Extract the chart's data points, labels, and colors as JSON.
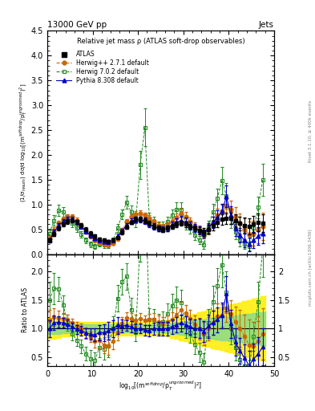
{
  "title_top": "13000 GeV pp",
  "title_top_right": "Jets",
  "plot_title": "Relative jet mass ρ (ATLAS soft-drop observables)",
  "ylabel_main": "(1/σ$_{resum}$) dσ/d log$_{10}$[(m$^{soft drop}$/p$_T^{ungroomed}$)$^2$]",
  "ylabel_ratio": "Ratio to ATLAS",
  "xlabel": "log$_{10}$[(m$^{soft drop}$/p$_T^{ungroomed}$)$^2$]",
  "right_label1": "Rivet 3.1.10, ≥ 400k events",
  "right_label2": "mcplots.cern.ch [arXiv:1306.3436]",
  "xmin": 0,
  "xmax": 50,
  "ymin_main": 0.0,
  "ymax_main": 4.5,
  "ymin_ratio": 0.35,
  "ymax_ratio": 2.3,
  "atlas_color": "#000000",
  "herwigpp_color": "#cc6600",
  "herwig702_color": "#228b22",
  "pythia_color": "#0000cc",
  "xticks": [
    0,
    10,
    20,
    30,
    40,
    50
  ],
  "yticks_main": [
    0.0,
    0.5,
    1.0,
    1.5,
    2.0,
    2.5,
    3.0,
    3.5,
    4.0,
    4.5
  ],
  "yticks_ratio": [
    0.5,
    1.0,
    1.5,
    2.0
  ],
  "x": [
    0.5,
    1.5,
    2.5,
    3.5,
    4.5,
    5.5,
    6.5,
    7.5,
    8.5,
    9.5,
    10.5,
    11.5,
    12.5,
    13.5,
    14.5,
    15.5,
    16.5,
    17.5,
    18.5,
    19.5,
    20.5,
    21.5,
    22.5,
    23.5,
    24.5,
    25.5,
    26.5,
    27.5,
    28.5,
    29.5,
    30.5,
    31.5,
    32.5,
    33.5,
    34.5,
    35.5,
    36.5,
    37.5,
    38.5,
    39.5,
    40.5,
    41.5,
    42.5,
    43.5,
    44.5,
    45.5,
    46.5,
    47.5
  ],
  "atlas_y": [
    0.28,
    0.4,
    0.52,
    0.6,
    0.65,
    0.68,
    0.65,
    0.58,
    0.5,
    0.42,
    0.36,
    0.3,
    0.28,
    0.26,
    0.28,
    0.34,
    0.44,
    0.55,
    0.64,
    0.7,
    0.7,
    0.68,
    0.62,
    0.56,
    0.52,
    0.5,
    0.52,
    0.56,
    0.6,
    0.62,
    0.6,
    0.56,
    0.52,
    0.48,
    0.44,
    0.5,
    0.58,
    0.64,
    0.7,
    0.72,
    0.72,
    0.68,
    0.62,
    0.58,
    0.56,
    0.6,
    0.64,
    0.62
  ],
  "atlas_yerr": [
    0.04,
    0.04,
    0.04,
    0.04,
    0.04,
    0.04,
    0.04,
    0.04,
    0.04,
    0.04,
    0.04,
    0.03,
    0.03,
    0.03,
    0.03,
    0.03,
    0.04,
    0.04,
    0.04,
    0.05,
    0.05,
    0.05,
    0.05,
    0.05,
    0.05,
    0.05,
    0.05,
    0.05,
    0.05,
    0.05,
    0.05,
    0.05,
    0.06,
    0.07,
    0.08,
    0.09,
    0.1,
    0.1,
    0.11,
    0.12,
    0.12,
    0.13,
    0.14,
    0.15,
    0.16,
    0.17,
    0.18,
    0.18
  ],
  "herwigpp_y": [
    0.32,
    0.48,
    0.62,
    0.7,
    0.75,
    0.75,
    0.68,
    0.58,
    0.46,
    0.36,
    0.28,
    0.24,
    0.2,
    0.18,
    0.22,
    0.32,
    0.48,
    0.65,
    0.75,
    0.8,
    0.82,
    0.78,
    0.72,
    0.65,
    0.58,
    0.54,
    0.58,
    0.65,
    0.74,
    0.82,
    0.76,
    0.66,
    0.56,
    0.48,
    0.4,
    0.5,
    0.64,
    0.78,
    0.86,
    0.98,
    0.9,
    0.76,
    0.62,
    0.5,
    0.4,
    0.42,
    0.5,
    0.56
  ],
  "herwigpp_yerr": [
    0.05,
    0.06,
    0.06,
    0.06,
    0.06,
    0.05,
    0.05,
    0.05,
    0.05,
    0.04,
    0.04,
    0.04,
    0.04,
    0.04,
    0.04,
    0.05,
    0.05,
    0.06,
    0.06,
    0.07,
    0.07,
    0.06,
    0.06,
    0.06,
    0.06,
    0.06,
    0.06,
    0.07,
    0.08,
    0.09,
    0.09,
    0.08,
    0.08,
    0.09,
    0.09,
    0.1,
    0.12,
    0.14,
    0.14,
    0.18,
    0.18,
    0.18,
    0.2,
    0.22,
    0.25,
    0.25,
    0.28,
    0.28
  ],
  "herwig702_y": [
    0.42,
    0.68,
    0.88,
    0.85,
    0.72,
    0.62,
    0.52,
    0.4,
    0.28,
    0.2,
    0.16,
    0.2,
    0.18,
    0.18,
    0.28,
    0.52,
    0.8,
    1.05,
    0.85,
    0.65,
    1.8,
    2.55,
    0.72,
    0.65,
    0.56,
    0.56,
    0.65,
    0.78,
    0.9,
    0.9,
    0.62,
    0.52,
    0.38,
    0.28,
    0.18,
    0.55,
    0.85,
    1.12,
    1.48,
    1.18,
    0.72,
    0.45,
    0.28,
    0.2,
    0.16,
    0.52,
    0.94,
    1.5
  ],
  "herwig702_yerr": [
    0.09,
    0.11,
    0.11,
    0.1,
    0.09,
    0.08,
    0.07,
    0.07,
    0.06,
    0.06,
    0.05,
    0.05,
    0.05,
    0.05,
    0.06,
    0.08,
    0.1,
    0.13,
    0.13,
    0.1,
    0.28,
    0.38,
    0.12,
    0.1,
    0.09,
    0.09,
    0.1,
    0.12,
    0.14,
    0.14,
    0.12,
    0.1,
    0.09,
    0.08,
    0.07,
    0.12,
    0.16,
    0.2,
    0.28,
    0.26,
    0.2,
    0.15,
    0.12,
    0.1,
    0.09,
    0.15,
    0.22,
    0.32
  ],
  "pythia_y": [
    0.28,
    0.44,
    0.58,
    0.66,
    0.7,
    0.7,
    0.64,
    0.56,
    0.46,
    0.38,
    0.32,
    0.28,
    0.26,
    0.25,
    0.28,
    0.36,
    0.46,
    0.58,
    0.66,
    0.7,
    0.7,
    0.66,
    0.6,
    0.56,
    0.52,
    0.5,
    0.52,
    0.58,
    0.64,
    0.68,
    0.64,
    0.58,
    0.52,
    0.48,
    0.42,
    0.52,
    0.64,
    0.74,
    0.86,
    1.16,
    0.78,
    0.52,
    0.38,
    0.28,
    0.2,
    0.28,
    0.36,
    0.42
  ],
  "pythia_yerr": [
    0.04,
    0.05,
    0.05,
    0.05,
    0.05,
    0.05,
    0.05,
    0.05,
    0.04,
    0.04,
    0.04,
    0.04,
    0.04,
    0.04,
    0.04,
    0.05,
    0.05,
    0.05,
    0.06,
    0.06,
    0.06,
    0.06,
    0.06,
    0.06,
    0.06,
    0.06,
    0.06,
    0.07,
    0.08,
    0.09,
    0.09,
    0.08,
    0.08,
    0.08,
    0.08,
    0.1,
    0.12,
    0.14,
    0.16,
    0.22,
    0.18,
    0.16,
    0.14,
    0.14,
    0.14,
    0.16,
    0.18,
    0.2
  ],
  "yellow_band_x": [
    0,
    1,
    2,
    3,
    4,
    5,
    6,
    7,
    8,
    9,
    10,
    11,
    12,
    13,
    14,
    15,
    16,
    17,
    18,
    19,
    20,
    21,
    22,
    23,
    24,
    25,
    26,
    27,
    28,
    29,
    30,
    31,
    32,
    33,
    34,
    35,
    36,
    37,
    38,
    39,
    40,
    41,
    42,
    43,
    44,
    45,
    46,
    47,
    48
  ],
  "yellow_band_lo": [
    0.82,
    0.82,
    0.84,
    0.86,
    0.87,
    0.88,
    0.88,
    0.88,
    0.88,
    0.88,
    0.88,
    0.88,
    0.88,
    0.88,
    0.88,
    0.88,
    0.88,
    0.88,
    0.88,
    0.88,
    0.88,
    0.88,
    0.88,
    0.88,
    0.88,
    0.88,
    0.86,
    0.84,
    0.82,
    0.8,
    0.78,
    0.76,
    0.74,
    0.72,
    0.7,
    0.68,
    0.66,
    0.64,
    0.62,
    0.6,
    0.58,
    0.56,
    0.54,
    0.52,
    0.5,
    0.48,
    0.46,
    0.44,
    0.42
  ],
  "yellow_band_hi": [
    1.18,
    1.18,
    1.16,
    1.14,
    1.13,
    1.12,
    1.12,
    1.12,
    1.12,
    1.12,
    1.12,
    1.12,
    1.12,
    1.12,
    1.12,
    1.12,
    1.12,
    1.12,
    1.12,
    1.12,
    1.12,
    1.12,
    1.12,
    1.12,
    1.12,
    1.12,
    1.14,
    1.16,
    1.18,
    1.2,
    1.22,
    1.24,
    1.26,
    1.28,
    1.3,
    1.32,
    1.34,
    1.36,
    1.38,
    1.4,
    1.42,
    1.44,
    1.46,
    1.48,
    1.5,
    1.52,
    1.54,
    1.56,
    1.58
  ],
  "green_band_lo": [
    0.9,
    0.9,
    0.91,
    0.92,
    0.92,
    0.93,
    0.93,
    0.93,
    0.93,
    0.93,
    0.93,
    0.93,
    0.93,
    0.93,
    0.93,
    0.93,
    0.93,
    0.93,
    0.93,
    0.93,
    0.93,
    0.93,
    0.93,
    0.93,
    0.93,
    0.93,
    0.92,
    0.91,
    0.9,
    0.89,
    0.88,
    0.87,
    0.86,
    0.85,
    0.84,
    0.83,
    0.82,
    0.81,
    0.8,
    0.79,
    0.78,
    0.77,
    0.76,
    0.75,
    0.74,
    0.73,
    0.72,
    0.71,
    0.7
  ],
  "green_band_hi": [
    1.1,
    1.1,
    1.09,
    1.08,
    1.08,
    1.07,
    1.07,
    1.07,
    1.07,
    1.07,
    1.07,
    1.07,
    1.07,
    1.07,
    1.07,
    1.07,
    1.07,
    1.07,
    1.07,
    1.07,
    1.07,
    1.07,
    1.07,
    1.07,
    1.07,
    1.07,
    1.08,
    1.09,
    1.1,
    1.11,
    1.12,
    1.13,
    1.14,
    1.15,
    1.16,
    1.17,
    1.18,
    1.19,
    1.2,
    1.21,
    1.22,
    1.23,
    1.24,
    1.25,
    1.26,
    1.27,
    1.28,
    1.29,
    1.3
  ]
}
